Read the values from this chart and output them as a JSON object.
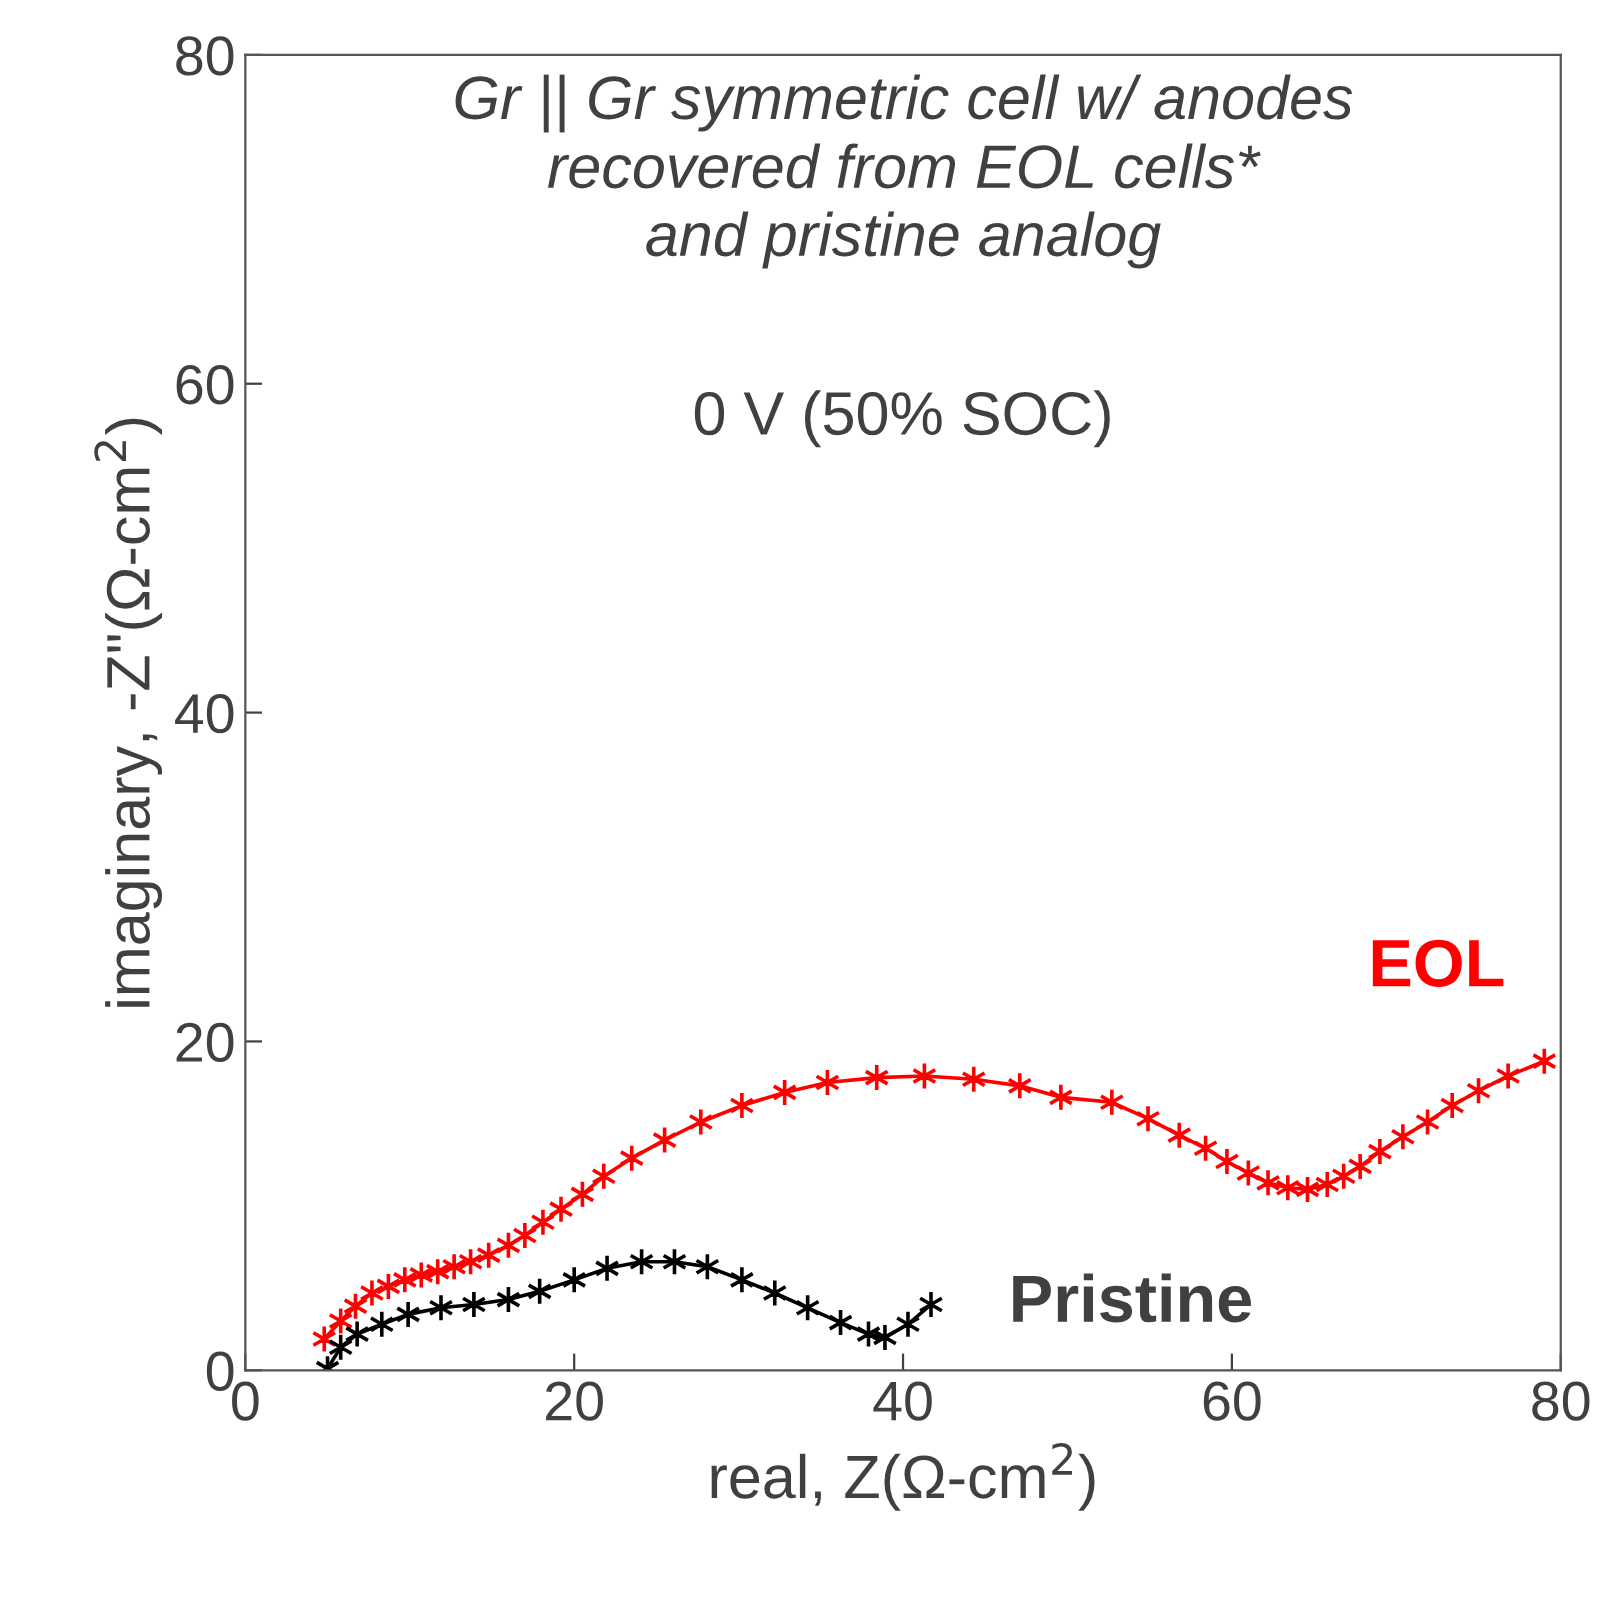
{
  "chart_data": {
    "type": "line",
    "title": "Gr || Gr symmetric cell w/ anodes\nrecovered from EOL cells*\nand pristine analog",
    "subtitle": "0 V (50% SOC)",
    "xlabel": "real, Z(Ω-cm$^{2}$)",
    "ylabel": "imaginary, -Z\"(Ω-cm$^{2}$)",
    "xlim": [
      0,
      80
    ],
    "ylim": [
      0,
      80
    ],
    "xticks": [
      0,
      20,
      40,
      60,
      80
    ],
    "yticks": [
      0,
      20,
      40,
      60,
      80
    ],
    "grid": false,
    "marker": "cross",
    "line_style": "solid",
    "series": [
      {
        "name": "EOL",
        "color": "#ff0000",
        "x": [
          4.8,
          5.8,
          6.7,
          7.7,
          8.7,
          9.7,
          10.7,
          11.7,
          12.7,
          13.7,
          14.8,
          16.0,
          17.0,
          18.1,
          19.2,
          20.5,
          21.8,
          23.5,
          25.5,
          27.7,
          30.2,
          32.8,
          35.4,
          38.4,
          41.3,
          44.3,
          47.1,
          49.6,
          52.7,
          54.9,
          56.8,
          58.4,
          59.7,
          61.0,
          62.2,
          63.4,
          64.6,
          65.8,
          66.8,
          67.8,
          69.0,
          70.4,
          71.9,
          73.4,
          75.0,
          76.8,
          79.0
        ],
        "values": [
          1.9,
          3.0,
          3.9,
          4.7,
          5.1,
          5.5,
          5.8,
          6.0,
          6.3,
          6.6,
          7.0,
          7.6,
          8.2,
          9.0,
          9.8,
          10.7,
          11.8,
          12.9,
          14.0,
          15.1,
          16.1,
          16.9,
          17.5,
          17.8,
          17.9,
          17.7,
          17.3,
          16.6,
          16.3,
          15.3,
          14.3,
          13.5,
          12.7,
          12.0,
          11.4,
          11.1,
          11.0,
          11.3,
          11.8,
          12.4,
          13.3,
          14.2,
          15.1,
          16.1,
          17.0,
          17.9,
          18.8
        ]
      },
      {
        "name": "Pristine",
        "color": "#000000",
        "x": [
          5.0,
          5.8,
          6.8,
          8.3,
          9.9,
          11.9,
          13.9,
          16.0,
          17.9,
          20.0,
          22.0,
          24.1,
          26.1,
          28.1,
          30.2,
          32.2,
          34.2,
          36.2,
          37.9,
          38.9,
          40.3,
          41.7
        ],
        "values": [
          0.1,
          1.4,
          2.2,
          2.8,
          3.4,
          3.8,
          4.0,
          4.3,
          4.8,
          5.5,
          6.2,
          6.6,
          6.6,
          6.3,
          5.5,
          4.7,
          3.8,
          2.9,
          2.2,
          2.0,
          2.8,
          4.0
        ]
      }
    ]
  }
}
